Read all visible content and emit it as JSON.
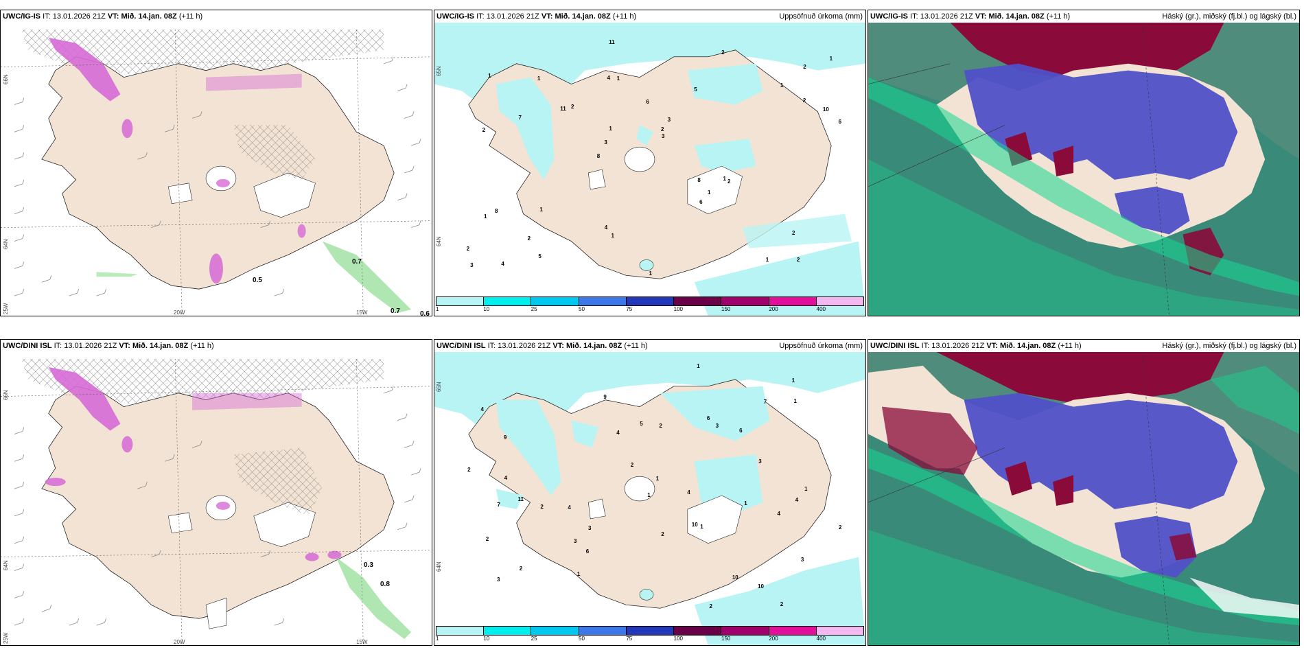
{
  "panels": {
    "ig_thermal": {
      "model": "UWC/IG-IS",
      "it_label": "IT:",
      "it_value": "13.01.2026 21Z",
      "vt_label": "VT:",
      "vt_value": "Mið. 14.jan. 08Z",
      "lead": "(+11 h)",
      "field_title": "",
      "lat_labels": [
        "66N",
        "64N"
      ],
      "lon_labels": [
        "25W",
        "20W",
        "15W"
      ],
      "values": [
        "0.5",
        "0.7",
        "0.7",
        "0.6"
      ]
    },
    "ig_precip": {
      "model": "UWC/IG-IS",
      "it_label": "IT:",
      "it_value": "13.01.2026 21Z",
      "vt_label": "VT:",
      "vt_value": "Mið. 14.jan. 08Z",
      "lead": "(+11 h)",
      "field_title": "Uppsöfnuð úrkoma (mm)",
      "lat_labels": [
        "65N",
        "64N"
      ],
      "values": [
        "2",
        "2",
        "2",
        "8",
        "5",
        "4",
        "4",
        "6",
        "8",
        "2",
        "2",
        "2",
        "1",
        "3",
        "2",
        "1",
        "11",
        "6",
        "8",
        "2",
        "3",
        "4",
        "1",
        "1",
        "2",
        "1",
        "1",
        "2",
        "1",
        "1",
        "11",
        "7",
        "6",
        "5",
        "10",
        "2",
        "3",
        "1",
        "3",
        "1",
        "1",
        "1",
        "1"
      ],
      "legend": {
        "ticks": [
          "1",
          "10",
          "25",
          "50",
          "75",
          "100",
          "150",
          "200",
          "400"
        ],
        "colors": [
          "#b8f4f4",
          "#00eeee",
          "#00c8ee",
          "#3c78e8",
          "#2238b8",
          "#6a0048",
          "#a0006e",
          "#e0109a",
          "#f4b8f0"
        ]
      }
    },
    "ig_cloud": {
      "model": "UWC/IG-IS",
      "it_label": "IT:",
      "it_value": "13.01.2026 21Z",
      "vt_label": "VT:",
      "vt_value": "Mið. 14.jan. 08Z",
      "lead": "(+11 h)",
      "field_title": "Háský (gr.), miðský (fj.bl.) og lágský (bl.)"
    },
    "dini_thermal": {
      "model": "UWC/DINI ISL",
      "it_label": "IT:",
      "it_value": "13.01.2026 21Z",
      "vt_label": "VT:",
      "vt_value": "Mið. 14.jan. 08Z",
      "lead": "(+11 h)",
      "field_title": "",
      "lat_labels": [
        "66N",
        "64N"
      ],
      "lon_labels": [
        "25W",
        "20W",
        "15W"
      ],
      "values": [
        "0.3",
        "0.8"
      ]
    },
    "dini_precip": {
      "model": "UWC/DINI ISL",
      "it_label": "IT:",
      "it_value": "13.01.2026 21Z",
      "vt_label": "VT:",
      "vt_value": "Mið. 14.jan. 08Z",
      "lead": "(+11 h)",
      "field_title": "Uppsöfnuð úrkoma (mm)",
      "lat_labels": [
        "65N",
        "64N"
      ],
      "values": [
        "2",
        "11",
        "10",
        "4",
        "3",
        "9",
        "2",
        "4",
        "6",
        "5",
        "3",
        "10",
        "6",
        "9",
        "4",
        "2",
        "1",
        "1",
        "2",
        "3",
        "1",
        "2",
        "3",
        "2",
        "1",
        "4",
        "2",
        "1",
        "2",
        "1",
        "1",
        "7",
        "3",
        "6",
        "4",
        "4",
        "4",
        "10",
        "7",
        "2",
        "3",
        "2",
        "1",
        "1"
      ],
      "legend": {
        "ticks": [
          "1",
          "10",
          "25",
          "50",
          "75",
          "100",
          "150",
          "200",
          "400"
        ],
        "colors": [
          "#b8f4f4",
          "#00eeee",
          "#00c8ee",
          "#3c78e8",
          "#2238b8",
          "#6a0048",
          "#a0006e",
          "#e0109a",
          "#f4b8f0"
        ]
      }
    },
    "dini_cloud": {
      "model": "UWC/DINI ISL",
      "it_label": "IT:",
      "it_value": "13.01.2026 21Z",
      "vt_label": "VT:",
      "vt_value": "Mið. 14.jan. 08Z",
      "lead": "(+11 h)",
      "field_title": "Háský (gr.), miðský (fj.bl.) og lágský (bl.)"
    }
  },
  "colors": {
    "land": "#f2e3d4",
    "precip_light": "#b8f4f4",
    "thermal_hatch": "#555555",
    "thermal_magenta": "#d66ad6",
    "low_cloud": "#3fa088",
    "mid_cloud": "#5050c8",
    "high_cloud": "#8a0a3a",
    "green_band": "#16d890"
  }
}
